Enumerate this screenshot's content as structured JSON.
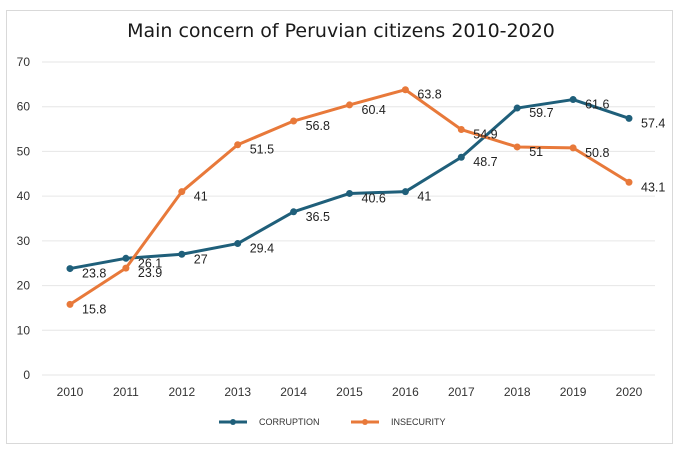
{
  "chart_data": {
    "type": "line",
    "title": "Main concern of Peruvian citizens 2010-2020",
    "xlabel": "",
    "ylabel": "",
    "x": [
      "2010",
      "2011",
      "2012",
      "2013",
      "2014",
      "2015",
      "2016",
      "2017",
      "2018",
      "2019",
      "2020"
    ],
    "ylim": [
      0,
      70
    ],
    "yticks": [
      0,
      10,
      20,
      30,
      40,
      50,
      60,
      70
    ],
    "grid": true,
    "legend_position": "bottom",
    "series": [
      {
        "name": "CORRUPTION",
        "color": "#1f5f7a",
        "values": [
          23.8,
          26.1,
          27,
          29.4,
          36.5,
          40.6,
          41,
          48.7,
          59.7,
          61.6,
          57.4
        ],
        "labels": [
          "23.8",
          "26.1",
          "27",
          "29.4",
          "36.5",
          "40.6",
          "41",
          "48.7",
          "59.7",
          "61.6",
          "57.4"
        ]
      },
      {
        "name": "INSECURITY",
        "color": "#e8793a",
        "values": [
          15.8,
          23.9,
          41,
          51.5,
          56.8,
          60.4,
          63.8,
          54.9,
          51,
          50.8,
          43.1
        ],
        "labels": [
          "15.8",
          "23.9",
          "41",
          "51.5",
          "56.8",
          "60.4",
          "63.8",
          "54.9",
          "51",
          "50.8",
          "43.1"
        ]
      }
    ]
  }
}
